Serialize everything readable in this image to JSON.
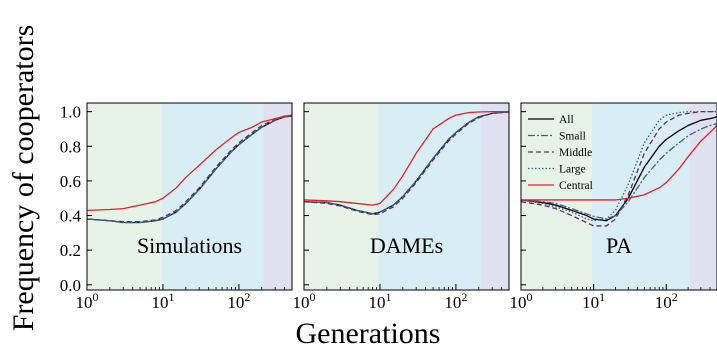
{
  "figure": {
    "xlabel": "Generations",
    "ylabel": "Frequency of cooperators"
  },
  "chart_data": [
    {
      "type": "line",
      "panel_label": "Simulations",
      "xscale": "log",
      "xlim": [
        1,
        500
      ],
      "ylim": [
        -0.03,
        1.05
      ],
      "x_tick_values": [
        1,
        10,
        100
      ],
      "x_tick_labels": [
        [
          "10",
          "0"
        ],
        [
          "10",
          "1"
        ],
        [
          "10",
          "2"
        ]
      ],
      "y_ticks": [
        0.0,
        0.2,
        0.4,
        0.6,
        0.8,
        1.0
      ],
      "y_tick_labels": [
        "0.0",
        "0.2",
        "0.4",
        "0.6",
        "0.8",
        "1.0"
      ],
      "shaded_regions": [
        {
          "from": 1,
          "to": 9.5,
          "color": "#e8f3e8"
        },
        {
          "from": 9.5,
          "to": 210,
          "color": "#d8eef4"
        },
        {
          "from": 210,
          "to": 500,
          "color": "#e1e0f0"
        }
      ],
      "series": [
        {
          "key": "all",
          "color": "#000000",
          "dash": "",
          "x": [
            1,
            2,
            3,
            5,
            8,
            10,
            15,
            20,
            30,
            50,
            80,
            100,
            150,
            200,
            300,
            400,
            500
          ],
          "y": [
            0.38,
            0.37,
            0.36,
            0.36,
            0.37,
            0.38,
            0.42,
            0.47,
            0.55,
            0.67,
            0.77,
            0.81,
            0.87,
            0.91,
            0.95,
            0.97,
            0.975
          ]
        },
        {
          "key": "small",
          "color": "#3a5ea8",
          "dash": "7 2 2 2",
          "x": [
            1,
            2,
            3,
            5,
            8,
            10,
            15,
            20,
            30,
            50,
            80,
            100,
            150,
            200,
            300,
            400,
            500
          ],
          "y": [
            0.38,
            0.37,
            0.36,
            0.36,
            0.37,
            0.38,
            0.42,
            0.47,
            0.55,
            0.67,
            0.77,
            0.81,
            0.87,
            0.91,
            0.95,
            0.97,
            0.975
          ]
        },
        {
          "key": "middle",
          "color": "#6b2a5e",
          "dash": "5 3",
          "x": [
            1,
            2,
            3,
            5,
            8,
            10,
            15,
            20,
            30,
            50,
            80,
            100,
            150,
            200,
            300,
            400,
            500
          ],
          "y": [
            0.38,
            0.37,
            0.365,
            0.365,
            0.375,
            0.39,
            0.43,
            0.48,
            0.56,
            0.68,
            0.78,
            0.82,
            0.88,
            0.92,
            0.955,
            0.97,
            0.975
          ]
        },
        {
          "key": "large",
          "color": "#1f6f6f",
          "dash": "1.5 2",
          "x": [
            1,
            2,
            3,
            5,
            8,
            10,
            15,
            20,
            30,
            50,
            80,
            100,
            150,
            200,
            300,
            400,
            500
          ],
          "y": [
            0.38,
            0.37,
            0.36,
            0.36,
            0.37,
            0.38,
            0.42,
            0.47,
            0.55,
            0.67,
            0.77,
            0.81,
            0.87,
            0.91,
            0.95,
            0.97,
            0.975
          ]
        },
        {
          "key": "central",
          "color": "#e0242b",
          "dash": "",
          "x": [
            1,
            2,
            3,
            5,
            8,
            10,
            15,
            20,
            30,
            50,
            80,
            100,
            150,
            200,
            300,
            400,
            500
          ],
          "y": [
            0.43,
            0.435,
            0.44,
            0.46,
            0.48,
            0.5,
            0.56,
            0.62,
            0.69,
            0.78,
            0.85,
            0.88,
            0.91,
            0.94,
            0.96,
            0.975,
            0.98
          ]
        }
      ]
    },
    {
      "type": "line",
      "panel_label": "DAMEs",
      "xscale": "log",
      "xlim": [
        1,
        500
      ],
      "ylim": [
        -0.03,
        1.05
      ],
      "x_tick_values": [
        1,
        10,
        100
      ],
      "x_tick_labels": [
        [
          "10",
          "0"
        ],
        [
          "10",
          "1"
        ],
        [
          "10",
          "2"
        ]
      ],
      "y_ticks": [
        0.0,
        0.2,
        0.4,
        0.6,
        0.8,
        1.0
      ],
      "y_tick_labels": [
        "0.0",
        "0.2",
        "0.4",
        "0.6",
        "0.8",
        "1.0"
      ],
      "shaded_regions": [
        {
          "from": 1,
          "to": 9.5,
          "color": "#e8f3e8"
        },
        {
          "from": 9.5,
          "to": 210,
          "color": "#d8eef4"
        },
        {
          "from": 210,
          "to": 500,
          "color": "#e1e0f0"
        }
      ],
      "series": [
        {
          "key": "all",
          "color": "#000000",
          "dash": "",
          "x": [
            1,
            2,
            3,
            5,
            8,
            10,
            15,
            20,
            30,
            50,
            80,
            100,
            150,
            200,
            300,
            400,
            500
          ],
          "y": [
            0.48,
            0.475,
            0.46,
            0.43,
            0.41,
            0.42,
            0.46,
            0.51,
            0.6,
            0.73,
            0.84,
            0.88,
            0.94,
            0.97,
            0.99,
            0.995,
            0.998
          ]
        },
        {
          "key": "small",
          "color": "#3a5ea8",
          "dash": "7 2 2 2",
          "x": [
            1,
            2,
            3,
            5,
            8,
            10,
            15,
            20,
            30,
            50,
            80,
            100,
            150,
            200,
            300,
            400,
            500
          ],
          "y": [
            0.48,
            0.475,
            0.46,
            0.43,
            0.41,
            0.42,
            0.46,
            0.51,
            0.6,
            0.73,
            0.84,
            0.88,
            0.94,
            0.97,
            0.99,
            0.995,
            0.998
          ]
        },
        {
          "key": "middle",
          "color": "#6b2a5e",
          "dash": "5 3",
          "x": [
            1,
            2,
            3,
            5,
            8,
            10,
            15,
            20,
            30,
            50,
            80,
            100,
            150,
            200,
            300,
            400,
            500
          ],
          "y": [
            0.48,
            0.47,
            0.455,
            0.425,
            0.405,
            0.41,
            0.45,
            0.5,
            0.59,
            0.72,
            0.83,
            0.87,
            0.935,
            0.965,
            0.99,
            0.995,
            0.998
          ]
        },
        {
          "key": "large",
          "color": "#1f6f6f",
          "dash": "1.5 2",
          "x": [
            1,
            2,
            3,
            5,
            8,
            10,
            15,
            20,
            30,
            50,
            80,
            100,
            150,
            200,
            300,
            400,
            500
          ],
          "y": [
            0.48,
            0.475,
            0.46,
            0.43,
            0.41,
            0.42,
            0.46,
            0.51,
            0.6,
            0.73,
            0.84,
            0.88,
            0.94,
            0.97,
            0.99,
            0.995,
            0.998
          ]
        },
        {
          "key": "central",
          "color": "#e0242b",
          "dash": "",
          "x": [
            1,
            2,
            3,
            5,
            8,
            10,
            15,
            20,
            30,
            50,
            80,
            100,
            150,
            200,
            300,
            400,
            500
          ],
          "y": [
            0.49,
            0.485,
            0.48,
            0.47,
            0.46,
            0.47,
            0.55,
            0.63,
            0.76,
            0.9,
            0.96,
            0.98,
            0.995,
            0.998,
            1.0,
            1.0,
            1.0
          ]
        }
      ]
    },
    {
      "type": "line",
      "panel_label": "PA",
      "xscale": "log",
      "xlim": [
        1,
        500
      ],
      "ylim": [
        -0.03,
        1.05
      ],
      "x_tick_values": [
        1,
        10,
        100
      ],
      "x_tick_labels": [
        [
          "10",
          "0"
        ],
        [
          "10",
          "1"
        ],
        [
          "10",
          "2"
        ]
      ],
      "y_ticks": [
        0.0,
        0.2,
        0.4,
        0.6,
        0.8,
        1.0
      ],
      "y_tick_labels": [
        "0.0",
        "0.2",
        "0.4",
        "0.6",
        "0.8",
        "1.0"
      ],
      "shaded_regions": [
        {
          "from": 1,
          "to": 9.5,
          "color": "#e8f3e8"
        },
        {
          "from": 9.5,
          "to": 210,
          "color": "#d8eef4"
        },
        {
          "from": 210,
          "to": 500,
          "color": "#e1e0f0"
        }
      ],
      "legend": {
        "position": "upper-left",
        "entries": [
          {
            "key": "all",
            "label": "All"
          },
          {
            "key": "small",
            "label": "Small"
          },
          {
            "key": "middle",
            "label": "Middle"
          },
          {
            "key": "large",
            "label": "Large"
          },
          {
            "key": "central",
            "label": "Central"
          }
        ]
      },
      "series": [
        {
          "key": "all",
          "color": "#000000",
          "dash": "",
          "x": [
            1,
            2,
            3,
            5,
            8,
            10,
            15,
            20,
            30,
            50,
            80,
            100,
            150,
            200,
            300,
            400,
            500
          ],
          "y": [
            0.49,
            0.475,
            0.46,
            0.43,
            0.4,
            0.38,
            0.37,
            0.4,
            0.5,
            0.68,
            0.8,
            0.84,
            0.89,
            0.92,
            0.95,
            0.96,
            0.97
          ]
        },
        {
          "key": "small",
          "color": "#3a5ea8",
          "dash": "7 2 2 2",
          "x": [
            1,
            2,
            3,
            5,
            8,
            10,
            15,
            20,
            30,
            50,
            80,
            100,
            150,
            200,
            300,
            400,
            500
          ],
          "y": [
            0.49,
            0.48,
            0.47,
            0.44,
            0.41,
            0.395,
            0.38,
            0.4,
            0.48,
            0.62,
            0.72,
            0.76,
            0.82,
            0.86,
            0.9,
            0.92,
            0.93
          ]
        },
        {
          "key": "middle",
          "color": "#6b2a5e",
          "dash": "5 3",
          "x": [
            1,
            2,
            3,
            5,
            8,
            10,
            15,
            20,
            30,
            50,
            80,
            100,
            150,
            200,
            300,
            400,
            500
          ],
          "y": [
            0.48,
            0.46,
            0.44,
            0.4,
            0.36,
            0.34,
            0.34,
            0.38,
            0.52,
            0.76,
            0.9,
            0.94,
            0.98,
            0.99,
            1.0,
            1.0,
            1.0
          ]
        },
        {
          "key": "large",
          "color": "#1f6f6f",
          "dash": "1.5 2",
          "x": [
            1,
            2,
            3,
            5,
            8,
            10,
            15,
            20,
            30,
            50,
            80,
            100,
            150,
            200,
            300,
            400,
            500
          ],
          "y": [
            0.49,
            0.47,
            0.45,
            0.42,
            0.38,
            0.37,
            0.38,
            0.43,
            0.58,
            0.82,
            0.95,
            0.98,
            0.995,
            1.0,
            1.0,
            1.0,
            1.0
          ]
        },
        {
          "key": "central",
          "color": "#e0242b",
          "dash": "",
          "x": [
            1,
            2,
            3,
            5,
            8,
            10,
            15,
            20,
            30,
            50,
            80,
            100,
            150,
            200,
            300,
            400,
            500
          ],
          "y": [
            0.49,
            0.49,
            0.49,
            0.49,
            0.49,
            0.49,
            0.49,
            0.49,
            0.5,
            0.52,
            0.56,
            0.59,
            0.67,
            0.74,
            0.83,
            0.88,
            0.92
          ]
        }
      ]
    }
  ]
}
